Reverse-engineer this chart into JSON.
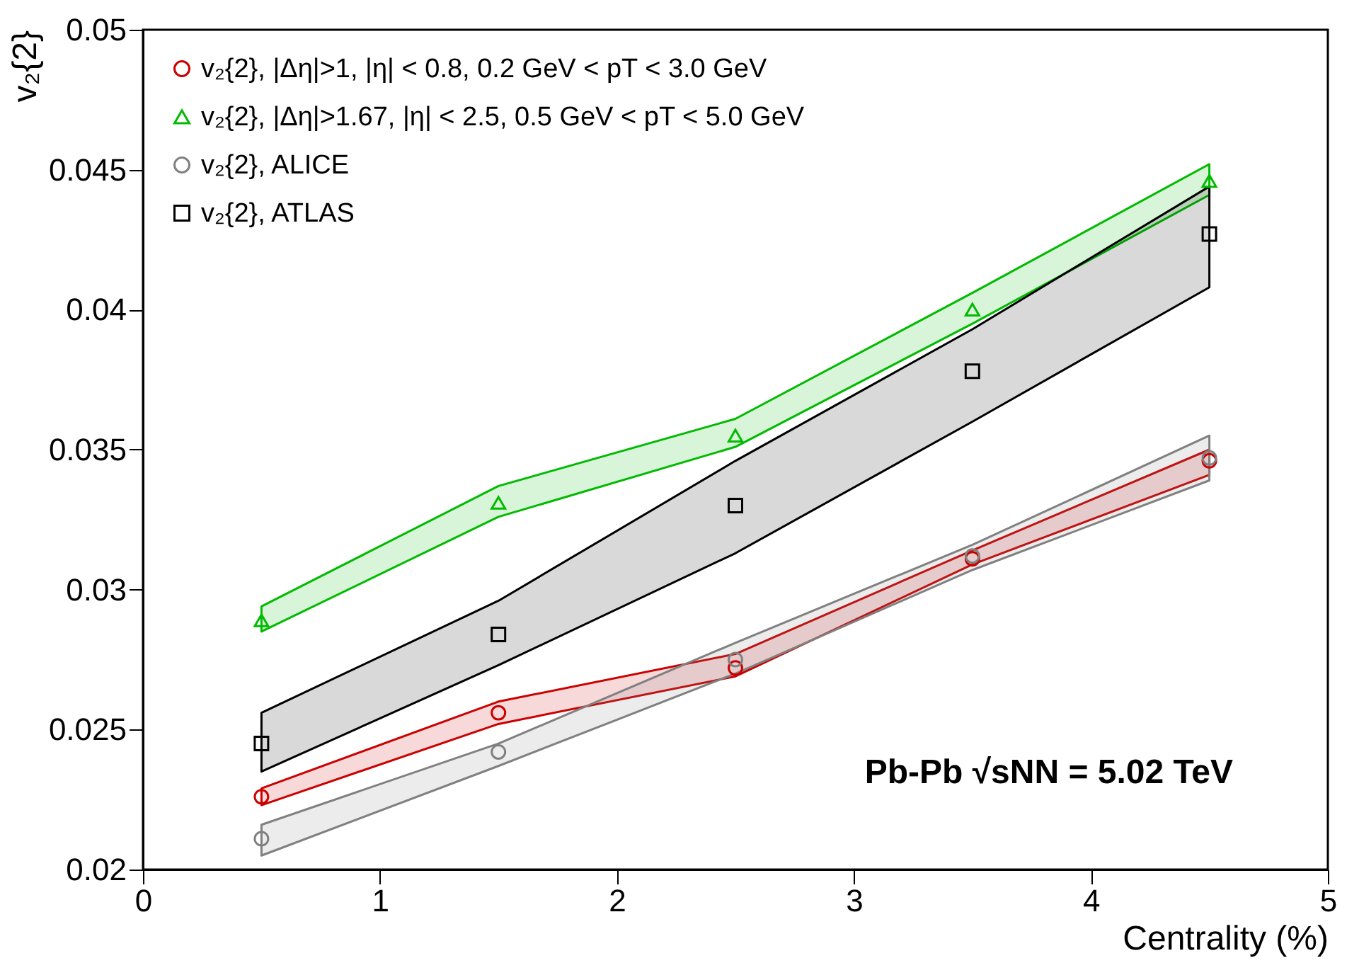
{
  "chart_data": {
    "type": "scatter",
    "xlabel": "Centrality (%)",
    "ylabel": "v₂{2}",
    "x": [
      0.5,
      1.5,
      2.5,
      3.5,
      4.5
    ],
    "xlim": [
      0,
      5
    ],
    "xticks": [
      0,
      1,
      2,
      3,
      4,
      5
    ],
    "ylim": [
      0.02,
      0.05
    ],
    "yticks": [
      0.02,
      0.025,
      0.03,
      0.035,
      0.04,
      0.045,
      0.05
    ],
    "grid": false,
    "legend": "top left",
    "annotations": [
      "Pb-Pb √sNN = 5.02 TeV"
    ],
    "series": [
      {
        "name": "v₂{2}, |Δη|>1, |η| < 0.8, 0.2 GeV < pT < 3.0 GeV",
        "color": "#cc0000",
        "marker": "circle",
        "values": [
          0.0226,
          0.0256,
          0.0272,
          0.0311,
          0.0346
        ],
        "lower": [
          0.0223,
          0.0252,
          0.0269,
          0.0309,
          0.0341
        ],
        "upper": [
          0.0229,
          0.026,
          0.0277,
          0.0314,
          0.035
        ]
      },
      {
        "name": "v₂{2}, |Δη|>1.67, |η| < 2.5, 0.5 GeV < pT < 5.0 GeV",
        "color": "#00bb00",
        "marker": "triangle",
        "values": [
          0.0289,
          0.0331,
          0.0355,
          0.04,
          0.0446
        ],
        "lower": [
          0.0285,
          0.0326,
          0.0351,
          0.0395,
          0.0441
        ],
        "upper": [
          0.0294,
          0.0337,
          0.0361,
          0.0406,
          0.0452
        ]
      },
      {
        "name": "v₂{2}, ALICE",
        "color": "#808080",
        "marker": "circle",
        "values": [
          0.0211,
          0.0242,
          0.0275,
          0.0312,
          0.0347
        ],
        "lower": [
          0.0205,
          0.0237,
          0.027,
          0.0307,
          0.0339
        ],
        "upper": [
          0.0216,
          0.0245,
          0.0281,
          0.0316,
          0.0355
        ]
      },
      {
        "name": "v₂{2}, ATLAS",
        "color": "#000000",
        "marker": "square",
        "values": [
          0.0245,
          0.0284,
          0.033,
          0.0378,
          0.0427
        ],
        "lower": [
          0.0235,
          0.0273,
          0.0313,
          0.036,
          0.0408
        ],
        "upper": [
          0.0256,
          0.0296,
          0.0346,
          0.0393,
          0.0444
        ]
      }
    ]
  }
}
